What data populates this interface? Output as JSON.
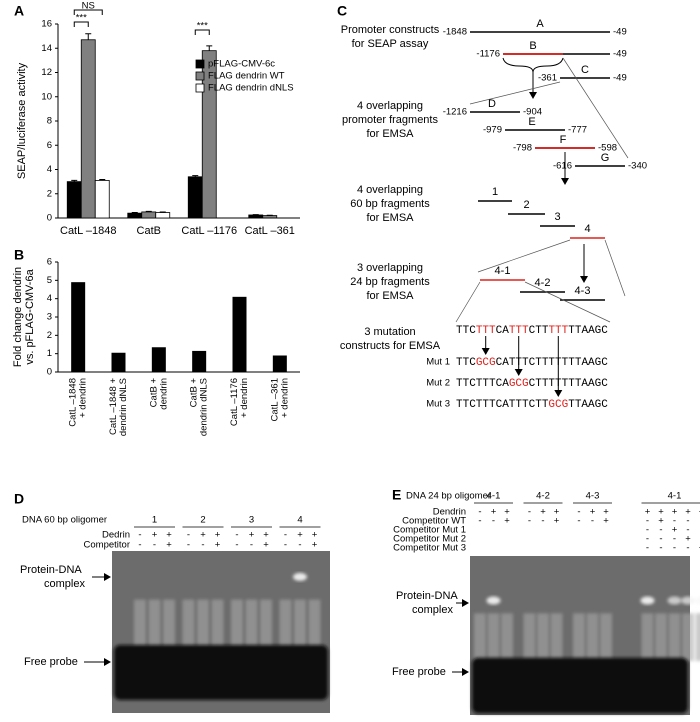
{
  "panel_labels": [
    "A",
    "B",
    "C",
    "D",
    "E"
  ],
  "chart_data": [
    {
      "type": "bar",
      "y_label": "SEAP/luciferase activity",
      "categories": [
        "CatL –1848",
        "CatB",
        "CatL –1176",
        "CatL –361"
      ],
      "series": [
        {
          "name": "pFLAG-CMV-6c",
          "color": "#000000",
          "values": [
            3.0,
            0.4,
            3.4,
            0.25
          ],
          "errors": [
            0.1,
            0.05,
            0.1,
            0.03
          ]
        },
        {
          "name": "FLAG dendrin WT",
          "color": "#808080",
          "values": [
            14.7,
            0.5,
            13.8,
            0.2
          ],
          "errors": [
            0.5,
            0.05,
            0.4,
            0.03
          ]
        },
        {
          "name": "FLAG dendrin dNLS",
          "color": "#ffffff",
          "values": [
            3.1,
            0.45,
            null,
            null
          ],
          "errors": [
            0.08,
            0.05,
            null,
            null
          ]
        }
      ],
      "ylim": [
        0,
        16
      ],
      "yticks": [
        0,
        2,
        4,
        6,
        8,
        10,
        12,
        14,
        16
      ],
      "annotations": [
        "***",
        "NS",
        "***"
      ]
    },
    {
      "type": "bar",
      "y_label": [
        "Fold change dendrin",
        "vs. pFLAG-CMV-6a"
      ],
      "categories": [
        [
          "CatL –1848",
          "+ dendrin"
        ],
        [
          "CatL –1848 +",
          "dendrin dNLS"
        ],
        [
          "CatB +",
          "dendrin"
        ],
        [
          "CatB +",
          "dendrin dNLS"
        ],
        [
          "CatL –1176",
          "+ dendrin"
        ],
        [
          "CatL –361",
          "+ dendrin"
        ]
      ],
      "values": [
        4.9,
        1.05,
        1.35,
        1.15,
        4.1,
        0.9
      ],
      "color": "#000000",
      "ylim": [
        0,
        6
      ],
      "yticks": [
        0,
        1,
        2,
        3,
        4,
        5,
        6
      ]
    }
  ],
  "diagram": {
    "headings": [
      [
        "Promoter constructs",
        "for SEAP assay"
      ],
      [
        "4 overlapping",
        "promoter fragments",
        "for EMSA"
      ],
      [
        "4 overlapping",
        "60 bp fragments",
        "for EMSA"
      ],
      [
        "3 overlapping",
        "24 bp fragments",
        "for EMSA"
      ],
      [
        "3 mutation",
        "constructs for EMSA"
      ]
    ],
    "constructs": [
      {
        "start": "-1848",
        "name": "A",
        "end": "-49"
      },
      {
        "start": "-1176",
        "name": "B",
        "end": "-49"
      },
      {
        "start": "-361",
        "name": "C",
        "end": "-49"
      }
    ],
    "fragments": [
      {
        "start": "-1216",
        "name": "D",
        "end": "-904"
      },
      {
        "start": "-979",
        "name": "E",
        "end": "-777"
      },
      {
        "start": "-798",
        "name": "F",
        "end": "-598"
      },
      {
        "start": "-616",
        "name": "G",
        "end": "-340"
      }
    ],
    "oligos_60": [
      "1",
      "2",
      "3",
      "4"
    ],
    "oligos_24": [
      "4-1",
      "4-2",
      "4-3"
    ],
    "wild_type": [
      "TTC",
      "TTT",
      "CA",
      "TTT",
      "CTT",
      "TTT",
      "TTAAGC"
    ],
    "mutants": [
      {
        "name": "Mut 1",
        "sequence": [
          "TTC",
          "GCG",
          "CATTTCTTTTTTTAAGC"
        ]
      },
      {
        "name": "Mut 2",
        "sequence": [
          "TTCTTTCA",
          "GCG",
          "CTTTTTTTAAGC"
        ]
      },
      {
        "name": "Mut 3",
        "sequence": [
          "TTCTTTCATTTCTT",
          "GCG",
          "TTAAGC"
        ]
      }
    ]
  },
  "gel_d": {
    "title": "DNA 60 bp oligomer",
    "groups": [
      "1",
      "2",
      "3",
      "4"
    ],
    "rows": [
      {
        "label": "Dedrin",
        "signs": [
          "-",
          "+",
          "+",
          "-",
          "+",
          "+",
          "-",
          "+",
          "+",
          "-",
          "+",
          "+"
        ]
      },
      {
        "label": "Competitor",
        "signs": [
          "-",
          "-",
          "+",
          "-",
          "-",
          "+",
          "-",
          "-",
          "+",
          "-",
          "-",
          "+"
        ]
      }
    ],
    "complex_label": [
      "Protein-DNA",
      "complex"
    ],
    "free_label": "Free probe"
  },
  "gel_e": {
    "title": "DNA 24 bp oligomer",
    "groups": [
      "4-1",
      "4-2",
      "4-3",
      "4-1"
    ],
    "rows": [
      {
        "label": "Dendrin",
        "signs": [
          "-",
          "+",
          "+",
          "-",
          "+",
          "+",
          "-",
          "+",
          "+",
          "+",
          "+",
          "+",
          "+",
          "+"
        ]
      },
      {
        "label": "Competitor WT",
        "signs": [
          "-",
          "-",
          "+",
          "-",
          "-",
          "+",
          "-",
          "-",
          "+",
          "-",
          "+",
          "-",
          "-",
          "-"
        ]
      },
      {
        "label": "Competitor Mut 1",
        "signs": [
          null,
          null,
          null,
          null,
          null,
          null,
          null,
          null,
          null,
          "-",
          "-",
          "+",
          "-",
          "-"
        ]
      },
      {
        "label": "Competitor Mut 2",
        "signs": [
          null,
          null,
          null,
          null,
          null,
          null,
          null,
          null,
          null,
          "-",
          "-",
          "-",
          "+",
          "-"
        ]
      },
      {
        "label": "Competitor Mut 3",
        "signs": [
          null,
          null,
          null,
          null,
          null,
          null,
          null,
          null,
          null,
          "-",
          "-",
          "-",
          "-",
          "+"
        ]
      }
    ],
    "complex_label": [
      "Protein-DNA",
      "complex"
    ],
    "free_label": "Free probe"
  }
}
